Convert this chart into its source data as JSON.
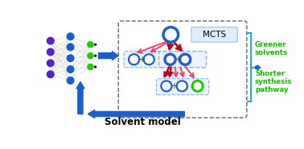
{
  "bg_color": "#ffffff",
  "mcts_label": "MCTS",
  "solvent_label": "Solvent model",
  "greener_label": "Greener\nsolvents",
  "shorter_label": "Shorter\nsynthesis\npathway",
  "blue": "#1a5fcc",
  "blue_arrow": "#1a5fcc",
  "green": "#22cc00",
  "pink": "#ee4466",
  "dark_red": "#bb0011",
  "purple": "#5522cc",
  "cyan": "#00aadd",
  "gray_conn": "#cccccc"
}
